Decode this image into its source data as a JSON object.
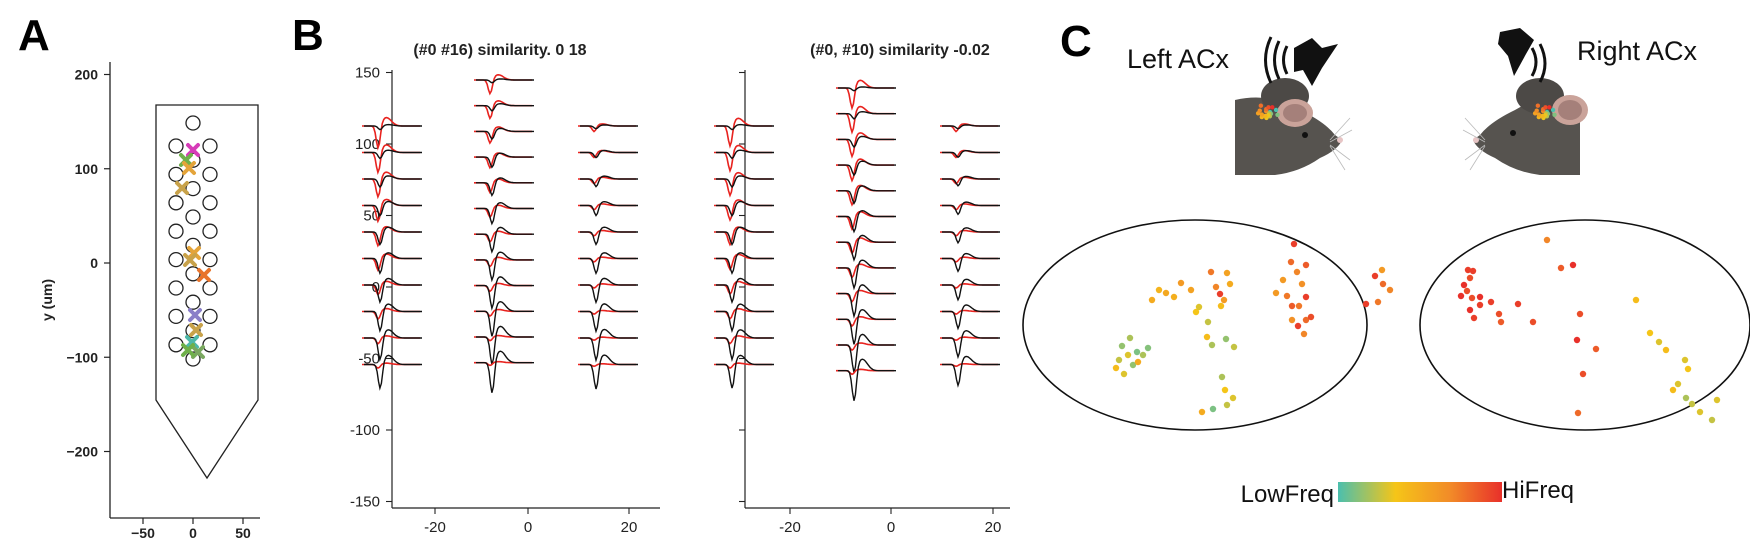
{
  "panels": {
    "A": {
      "letter": "A",
      "ylabel": "y (um)",
      "yticks": [
        200,
        100,
        0,
        -100,
        -200
      ],
      "ytick_labels": [
        "200",
        "100",
        "0",
        "−100",
        "−200"
      ],
      "xticks": [
        -50,
        0,
        50
      ],
      "xtick_labels": [
        "−50",
        "0",
        "50"
      ],
      "marker_colors": [
        "#d63cb8",
        "#6fb04a",
        "#e4a43a",
        "#c8a24a",
        "#e8742c",
        "#8a7fc8",
        "#4fb8a8",
        "#7aa860"
      ]
    },
    "B": {
      "letter": "B",
      "left_title": "(#0  #16) similarity. 0 18",
      "right_title": "(#0, #10) similarity -0.02",
      "yticks": [
        150,
        100,
        50,
        0,
        -50,
        -100,
        -150
      ],
      "ytick_labels": [
        "150",
        "100",
        "50",
        "0",
        "-50",
        "-100",
        "-150"
      ],
      "xtick_labels": [
        "-20",
        "0",
        "20"
      ],
      "trace_colors": {
        "template": "#e8231f",
        "waveform": "#111111"
      }
    },
    "C": {
      "letter": "C",
      "left_label": "Left ACx",
      "right_label": "Right ACx",
      "colorbar_low": "LowFreq",
      "colorbar_high": "HiFreq",
      "colormap": [
        "#4bbfae",
        "#f5c518",
        "#f28c28",
        "#e8302a"
      ],
      "mouse_color": "#555250",
      "speaker_color": "#111111"
    }
  }
}
